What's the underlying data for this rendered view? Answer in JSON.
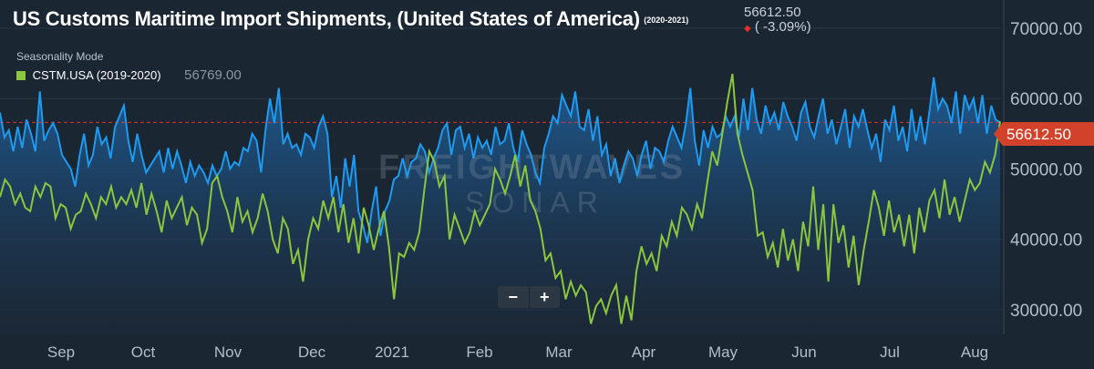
{
  "header": {
    "title": "US Customs Maritime Import Shipments, (United States of America)",
    "range": "(2020-2021)",
    "current_value": "56612.50",
    "change": "( -3.09%)",
    "change_color": "#e0302e"
  },
  "legend": {
    "mode": "Seasonality Mode",
    "series_label": "CSTM.USA (2019-2020)",
    "series_value": "56769.00"
  },
  "zoom": {
    "minus": "−",
    "plus": "+"
  },
  "price_tag": "56612.50",
  "chart_data": {
    "type": "line",
    "xlabels": [
      "Sep",
      "Oct",
      "Nov",
      "Dec",
      "2021",
      "Feb",
      "Mar",
      "Apr",
      "May",
      "Jun",
      "Jul",
      "Aug"
    ],
    "yticks": [
      "70000.00",
      "60000.00",
      "50000.00",
      "40000.00",
      "30000.00"
    ],
    "ylim": [
      26500,
      74000
    ],
    "reference_line": 56612.5,
    "colors": {
      "current": "#1e9bf0",
      "prior": "#8cc63e",
      "reference": "#e0302e"
    },
    "series": [
      {
        "name": "CSTM.USA (2019-2020)",
        "values": [
          46000,
          48500,
          47500,
          45000,
          46500,
          44500,
          44000,
          47500,
          46000,
          48000,
          47500,
          43000,
          45000,
          44500,
          41500,
          43500,
          44000,
          46500,
          45000,
          43000,
          46000,
          45000,
          47500,
          44500,
          46000,
          45000,
          47000,
          44500,
          48000,
          43500,
          46500,
          44000,
          41000,
          45500,
          43000,
          44500,
          46000,
          42000,
          44500,
          43500,
          39500,
          41500,
          48000,
          49000,
          46000,
          44000,
          41000,
          46000,
          42500,
          44000,
          41000,
          43000,
          46500,
          44000,
          40000,
          38000,
          43000,
          41500,
          36500,
          38500,
          34000,
          40000,
          43000,
          41500,
          45500,
          43000,
          46000,
          41000,
          45000,
          39500,
          43000,
          38000,
          44500,
          42000,
          38500,
          41500,
          44000,
          39000,
          31500,
          38000,
          37500,
          39500,
          38500,
          41000,
          47000,
          52500,
          51000,
          47500,
          49000,
          40000,
          43500,
          41500,
          39500,
          41000,
          44000,
          42000,
          43500,
          45000,
          50000,
          48500,
          46500,
          49000,
          52000,
          47500,
          50500,
          45500,
          44000,
          41500,
          37000,
          38000,
          34500,
          35500,
          31500,
          34000,
          32000,
          33500,
          32500,
          28000,
          30500,
          31500,
          29500,
          32000,
          33500,
          28000,
          32000,
          28500,
          35500,
          39000,
          36500,
          38000,
          35500,
          40500,
          39000,
          42500,
          40500,
          44500,
          43500,
          41500,
          45000,
          43000,
          48000,
          52500,
          50500,
          55000,
          59500,
          63500,
          55000,
          52000,
          49500,
          47000,
          40500,
          41000,
          37500,
          39500,
          36000,
          41500,
          37000,
          40000,
          35500,
          42500,
          39000,
          47500,
          38500,
          45000,
          34000,
          45000,
          39500,
          42000,
          36000,
          40500,
          33500,
          38500,
          42500,
          47000,
          44500,
          40500,
          45500,
          41000,
          43500,
          39000,
          43500,
          38000,
          44500,
          41000,
          45500,
          47000,
          43000,
          48500,
          43500,
          46000,
          42500,
          45500,
          48500,
          47000,
          48000,
          51000,
          49500,
          52000,
          56769
        ]
      },
      {
        "name": "",
        "values": [
          58000,
          54500,
          55500,
          52500,
          56000,
          53000,
          57000,
          55000,
          52500,
          61000,
          54000,
          55500,
          56500,
          55000,
          52000,
          51000,
          50000,
          47500,
          52000,
          55000,
          50500,
          52000,
          56000,
          53500,
          54500,
          51500,
          56000,
          57500,
          59000,
          54000,
          51000,
          55000,
          52000,
          49500,
          50500,
          51500,
          52500,
          49500,
          53000,
          50000,
          52500,
          50500,
          48000,
          51000,
          49000,
          50500,
          49500,
          48000,
          50500,
          49000,
          50000,
          52500,
          50000,
          51000,
          50500,
          53000,
          52500,
          55000,
          54000,
          49500,
          55500,
          60000,
          56500,
          61500,
          53500,
          55000,
          53000,
          53500,
          52000,
          55000,
          54500,
          53000,
          56000,
          57500,
          55000,
          46000,
          49000,
          44500,
          51500,
          47500,
          52000,
          44000,
          42000,
          39500,
          44000,
          47500,
          40500,
          44000,
          45500,
          48500,
          49000,
          51500,
          49000,
          51000,
          51500,
          53500,
          52500,
          49500,
          51500,
          53000,
          55500,
          56500,
          52000,
          55500,
          56000,
          53000,
          55000,
          51500,
          54500,
          53000,
          54000,
          52000,
          56000,
          53500,
          54000,
          56500,
          53000,
          51000,
          55500,
          53500,
          52000,
          49500,
          48000,
          53000,
          55000,
          57500,
          56500,
          60500,
          59000,
          57500,
          61000,
          56000,
          55500,
          58500,
          54000,
          57500,
          52000,
          53500,
          49000,
          51500,
          48000,
          50500,
          52500,
          51500,
          49000,
          52000,
          54000,
          50000,
          53000,
          52500,
          51000,
          54000,
          56000,
          54500,
          53000,
          56500,
          61500,
          54000,
          50500,
          55500,
          53000,
          56000,
          54500,
          55000,
          57500,
          56000,
          57500,
          54500,
          60000,
          55500,
          61500,
          57000,
          55000,
          59000,
          56500,
          58000,
          55500,
          59500,
          57500,
          56000,
          54000,
          58000,
          59500,
          56000,
          54500,
          57500,
          60000,
          55000,
          57000,
          53500,
          56000,
          58500,
          53000,
          57500,
          56000,
          58500,
          55500,
          53000,
          55000,
          51000,
          57000,
          55500,
          59000,
          54000,
          56000,
          52500,
          58500,
          54000,
          57500,
          53500,
          58000,
          63000,
          58500,
          60000,
          59000,
          56500,
          61000,
          55000,
          60500,
          58500,
          60000,
          56500,
          60500,
          55000,
          59000,
          57000,
          56612.5
        ]
      }
    ]
  }
}
